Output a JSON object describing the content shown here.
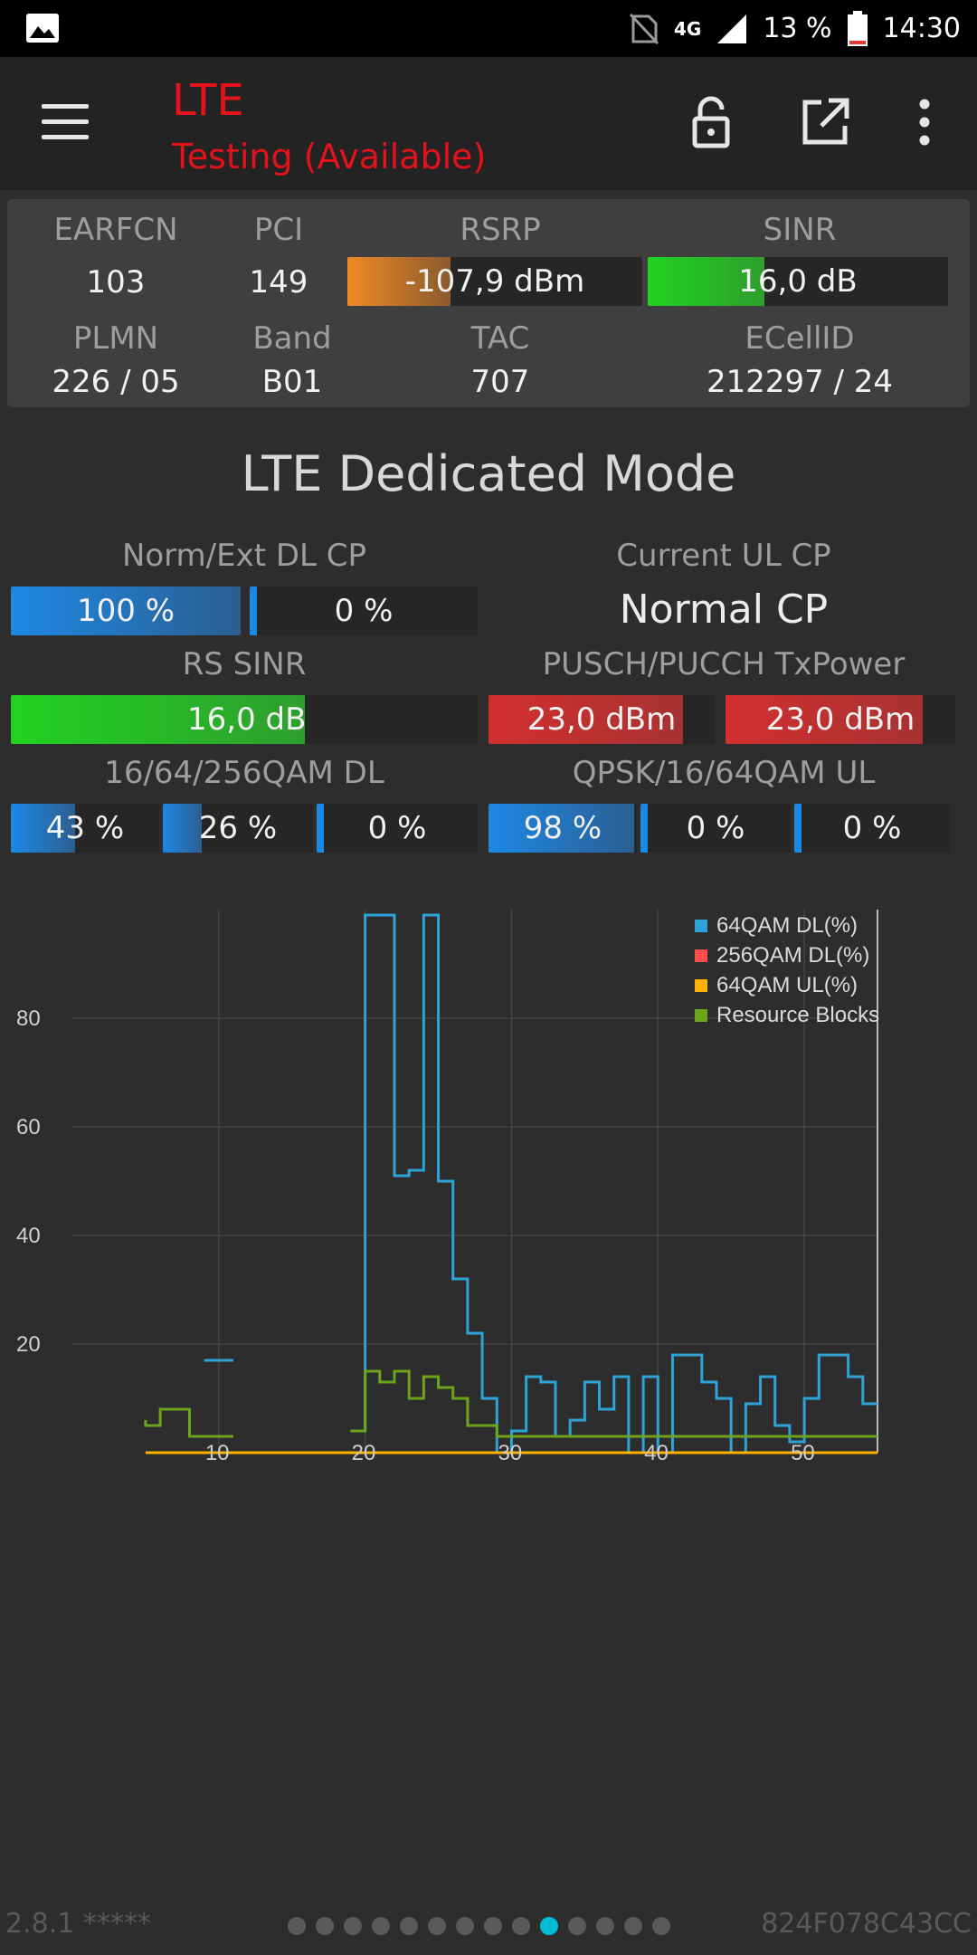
{
  "statusbar": {
    "network": "4G",
    "battery": "13 %",
    "time": "14:30"
  },
  "appbar": {
    "title": "LTE",
    "subtitle": "Testing (Available)"
  },
  "serving": {
    "earfcn_label": "EARFCN",
    "earfcn": "103",
    "pci_label": "PCI",
    "pci": "149",
    "rsrp_label": "RSRP",
    "rsrp": "-107,9 dBm",
    "rsrp_level": 0.35,
    "sinr_label": "SINR",
    "sinr": "16,0 dB",
    "sinr_level": 0.39,
    "plmn_label": "PLMN",
    "plmn": "226 / 05",
    "band_label": "Band",
    "band": "B01",
    "tac_label": "TAC",
    "tac": "707",
    "ecellid_label": "ECellID",
    "ecellid": "212297 / 24"
  },
  "mode_title": "LTE Dedicated Mode",
  "metrics": {
    "dl_cp_label": "Norm/Ext DL CP",
    "dl_cp_norm": "100 %",
    "dl_cp_norm_level": 1.0,
    "dl_cp_ext": "0 %",
    "dl_cp_ext_level": 0.0,
    "ul_cp_label": "Current UL CP",
    "ul_cp": "Normal CP",
    "rs_sinr_label": "RS SINR",
    "rs_sinr": "16,0 dB",
    "rs_sinr_level": 0.63,
    "txpower_label": "PUSCH/PUCCH TxPower",
    "pusch": "23,0 dBm",
    "pusch_level": 0.86,
    "pucch": "23,0 dBm",
    "pucch_level": 0.86,
    "qam_dl_label": "16/64/256QAM DL",
    "qam16_dl": "43 %",
    "qam16_dl_level": 0.43,
    "qam64_dl": "26 %",
    "qam64_dl_level": 0.26,
    "qam256_dl": "0 %",
    "qam256_dl_level": 0.0,
    "qam_ul_label": "QPSK/16/64QAM UL",
    "qpsk_ul": "98 %",
    "qpsk_ul_level": 0.98,
    "qam16_ul": "0 %",
    "qam16_ul_level": 0.0,
    "qam64_ul": "0 %",
    "qam64_ul_level": 0.0
  },
  "colors": {
    "blue": "#1e88e5",
    "green": "#21d321",
    "orange": "#f08a24",
    "red": "#d32f2f"
  },
  "chart_data": {
    "type": "line",
    "xlim": [
      0,
      55
    ],
    "ylim": [
      0,
      100
    ],
    "x_ticks": [
      10,
      20,
      30,
      40,
      50
    ],
    "y_ticks": [
      20,
      40,
      60,
      80
    ],
    "grid": true,
    "legend_position": "top-right",
    "series": [
      {
        "name": "64QAM DL(%)",
        "color": "#2ea3d8",
        "x": [
          5,
          6,
          7,
          8,
          9,
          10,
          11,
          12,
          13,
          14,
          15,
          16,
          17,
          18,
          19,
          20,
          21,
          22,
          23,
          24,
          25,
          26,
          27,
          28,
          29,
          30,
          31,
          32,
          33,
          34,
          35,
          36,
          37,
          38,
          39,
          40,
          41,
          42,
          43,
          44,
          45,
          46,
          47,
          48,
          49,
          50,
          51,
          52,
          53,
          54,
          55
        ],
        "values": [
          null,
          null,
          null,
          null,
          17,
          17,
          null,
          null,
          null,
          null,
          null,
          null,
          null,
          null,
          4,
          4,
          99,
          99,
          51,
          52,
          99,
          50,
          32,
          22,
          10,
          0,
          4,
          14,
          13,
          3,
          6,
          13,
          8,
          14,
          0,
          14,
          0,
          18,
          18,
          13,
          10,
          0,
          9,
          14,
          5,
          2,
          10,
          18,
          18,
          14,
          9
        ]
      },
      {
        "name": "256QAM DL(%)",
        "color": "#ff4c4c",
        "x": [
          5,
          9
        ],
        "values": [
          0,
          0
        ]
      },
      {
        "name": "64QAM UL(%)",
        "color": "#ffb300",
        "x": [
          5,
          13,
          19,
          55
        ],
        "values": [
          0,
          0,
          0,
          0
        ]
      },
      {
        "name": "Resource Blocks",
        "color": "#6ca51c",
        "x": [
          5,
          6,
          7,
          8,
          9,
          10,
          11,
          12,
          13,
          14,
          15,
          16,
          17,
          18,
          19,
          20,
          21,
          22,
          23,
          24,
          25,
          26,
          27,
          28,
          29,
          30,
          31,
          32,
          33,
          34,
          35,
          36,
          37,
          38,
          39,
          40,
          41,
          42,
          43,
          44,
          45,
          46,
          47,
          48,
          49,
          50,
          51,
          52,
          53,
          54,
          55
        ],
        "values": [
          6,
          5,
          8,
          8,
          3,
          3,
          null,
          null,
          null,
          null,
          null,
          null,
          null,
          null,
          4,
          4,
          15,
          13,
          15,
          10,
          14,
          12,
          10,
          5,
          5,
          3,
          3,
          3,
          3,
          3,
          3,
          3,
          3,
          3,
          3,
          3,
          3,
          3,
          3,
          3,
          3,
          3,
          3,
          3,
          3,
          3,
          3,
          3,
          3,
          3,
          3
        ]
      }
    ]
  },
  "footer": {
    "version": "2.8.1 *****",
    "device_id": "824F078C43CC",
    "page_count": 14,
    "active_page": 9
  }
}
